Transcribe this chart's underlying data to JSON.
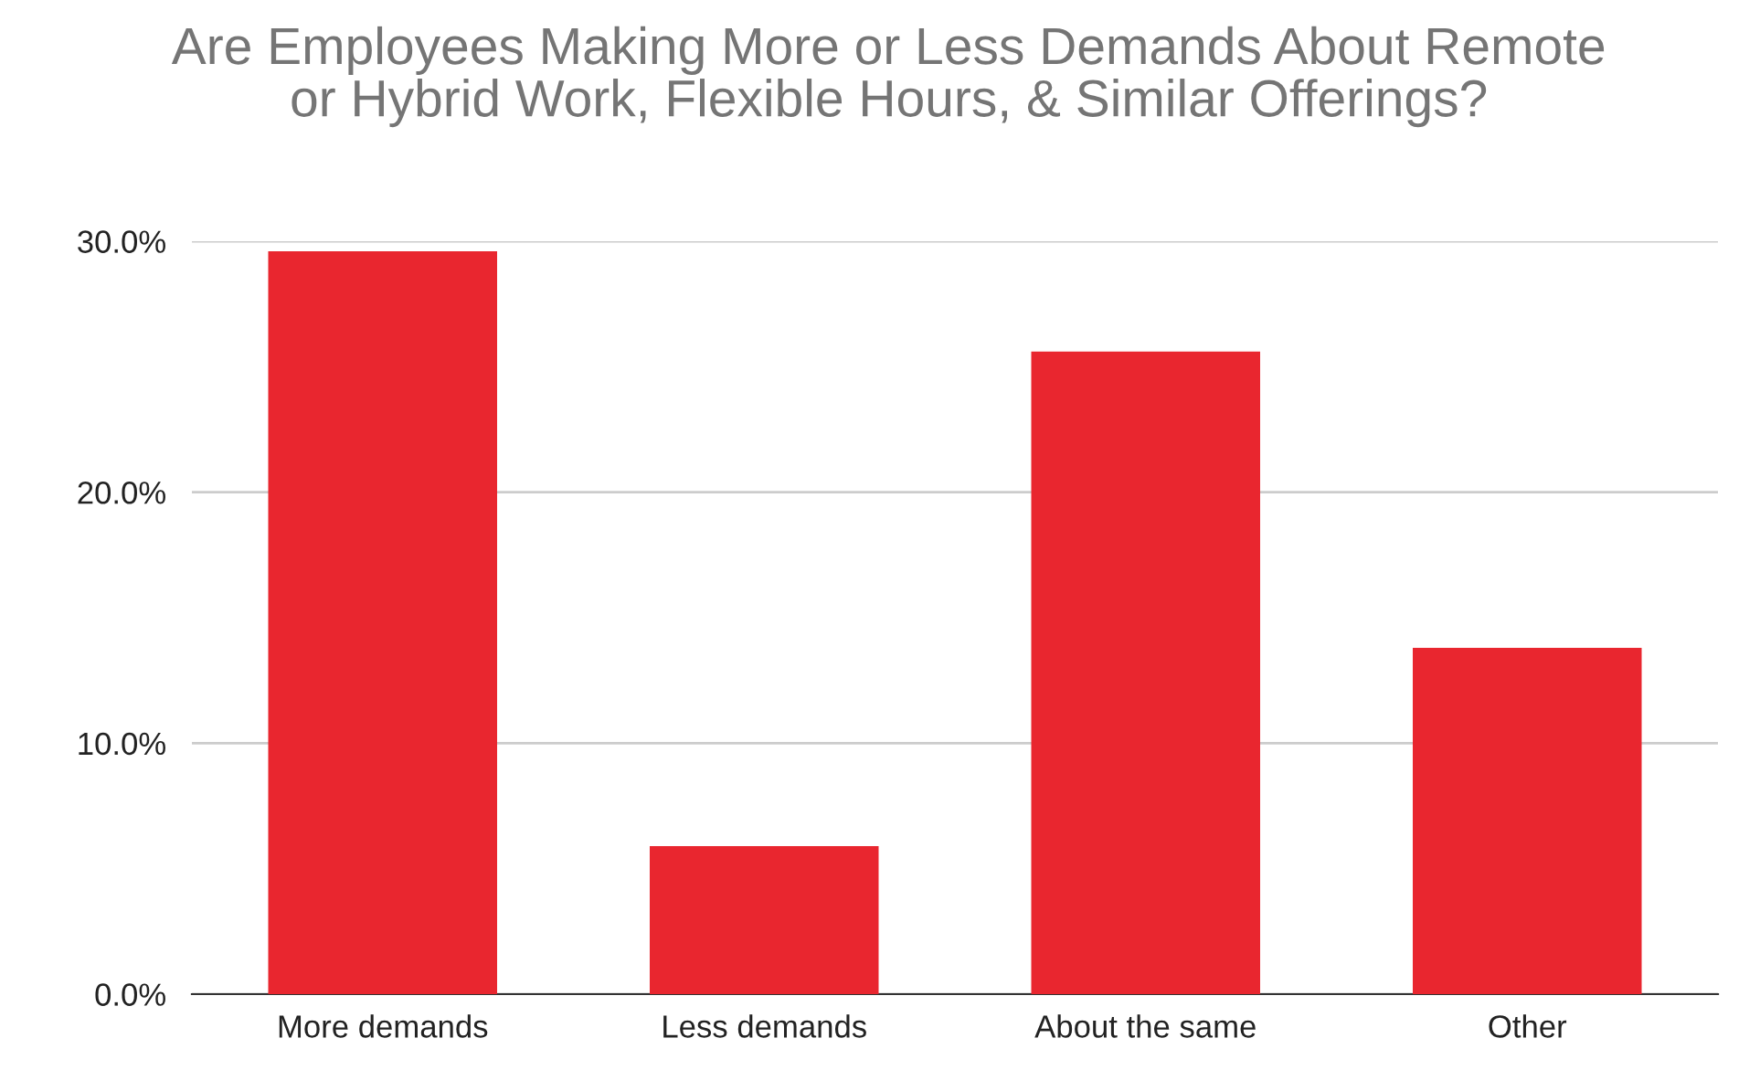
{
  "chart_data": {
    "type": "bar",
    "title": "Are Employees Making More or Less Demands About Remote\nor Hybrid Work, Flexible Hours, & Similar Offerings?",
    "categories": [
      "More demands",
      "Less demands",
      "About the same",
      "Other"
    ],
    "values": [
      29.6,
      5.9,
      25.6,
      13.8
    ],
    "color": "#e9262f",
    "ylim": [
      0,
      30
    ],
    "yticks": [
      {
        "value": 0,
        "label": "0.0%"
      },
      {
        "value": 10,
        "label": "10.0%"
      },
      {
        "value": 20,
        "label": "20.0%"
      },
      {
        "value": 30,
        "label": "30.0%"
      }
    ],
    "grid": "y"
  }
}
